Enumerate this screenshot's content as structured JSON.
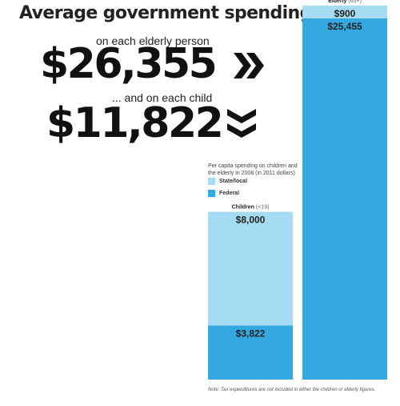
{
  "headline": {
    "title": "Average government spending",
    "elderly_label": "on each elderly person",
    "elderly_amount": "$26,355",
    "child_label": "... and on each child",
    "child_amount": "$11,822"
  },
  "chart_data": {
    "type": "bar",
    "stacked": true,
    "caption": "Per capita spending on children and the elderly in 2008 (in 2011 dollars)",
    "categories": [
      "Children (<19)",
      "Elderly (65+)"
    ],
    "series": [
      {
        "name": "Federal",
        "color": "#33a9e0",
        "values": [
          3822,
          25455
        ],
        "labels": [
          "$3,822",
          "$25,455"
        ]
      },
      {
        "name": "State/local",
        "color": "#a5dbf3",
        "values": [
          8000,
          900
        ],
        "labels": [
          "$8,000",
          "$900"
        ]
      }
    ],
    "legend": [
      "State/local",
      "Federal"
    ],
    "note": "Note: Tax expenditures are not included in either the children or elderly figures."
  },
  "colors": {
    "federal": "#33a9e0",
    "state_local": "#a5dbf3",
    "text": "#1a1a1a"
  }
}
